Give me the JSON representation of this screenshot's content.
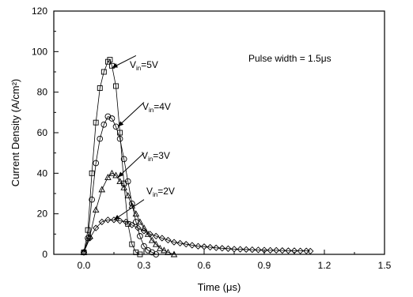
{
  "chart_data": {
    "type": "scatter",
    "xlabel": "Time (μs)",
    "ylabel": "Current Density (A/cm²)",
    "xlim": [
      -0.15,
      1.5
    ],
    "ylim": [
      0,
      120
    ],
    "xticks": [
      "0.0",
      "0.3",
      "0.6",
      "0.9",
      "1.2",
      "1.5"
    ],
    "yticks": [
      "0",
      "20",
      "40",
      "60",
      "80",
      "100",
      "120"
    ],
    "grid": false,
    "annotations": {
      "pulse_width": "Pulse width  = 1.5μs",
      "series_labels": [
        {
          "prefix": "V",
          "sub": "in",
          "suffix": "=5V"
        },
        {
          "prefix": "V",
          "sub": "in",
          "suffix": "=4V"
        },
        {
          "prefix": "V",
          "sub": "in",
          "suffix": "=3V"
        },
        {
          "prefix": "V",
          "sub": "in",
          "suffix": "=2V"
        }
      ]
    },
    "series": [
      {
        "marker": "square",
        "x": [
          0.0,
          0.02,
          0.04,
          0.06,
          0.08,
          0.1,
          0.12,
          0.13,
          0.14,
          0.16,
          0.18,
          0.2,
          0.22,
          0.24,
          0.26,
          0.28
        ],
        "y": [
          1,
          12,
          40,
          65,
          82,
          90,
          95,
          96,
          93,
          83,
          60,
          35,
          15,
          5,
          1,
          0
        ]
      },
      {
        "marker": "circle",
        "x": [
          0.0,
          0.02,
          0.04,
          0.06,
          0.08,
          0.1,
          0.12,
          0.14,
          0.16,
          0.18,
          0.2,
          0.22,
          0.24,
          0.26,
          0.28,
          0.3,
          0.32,
          0.34,
          0.36
        ],
        "y": [
          1,
          8,
          27,
          45,
          57,
          64,
          68,
          67,
          63,
          57,
          47,
          36,
          25,
          16,
          9,
          4,
          2,
          1,
          0
        ]
      },
      {
        "marker": "triangle",
        "x": [
          0.0,
          0.03,
          0.06,
          0.09,
          0.12,
          0.14,
          0.16,
          0.18,
          0.2,
          0.22,
          0.24,
          0.26,
          0.28,
          0.3,
          0.32,
          0.34,
          0.36,
          0.38,
          0.4,
          0.42,
          0.45
        ],
        "y": [
          1,
          9,
          22,
          32,
          38,
          40,
          39,
          36,
          33,
          29,
          24,
          20,
          16,
          13,
          10,
          7,
          5,
          3,
          2,
          1,
          0
        ]
      },
      {
        "marker": "diamond",
        "x": [
          0.0,
          0.03,
          0.06,
          0.09,
          0.12,
          0.15,
          0.18,
          0.21,
          0.24,
          0.27,
          0.3,
          0.33,
          0.36,
          0.39,
          0.42,
          0.45,
          0.48,
          0.51,
          0.54,
          0.57,
          0.6,
          0.63,
          0.66,
          0.69,
          0.72,
          0.75,
          0.78,
          0.81,
          0.84,
          0.87,
          0.9,
          0.93,
          0.96,
          0.99,
          1.02,
          1.05,
          1.08,
          1.11,
          1.13
        ],
        "y": [
          1,
          8,
          13,
          16,
          17,
          17,
          16.5,
          16,
          14.5,
          13,
          11.5,
          10,
          9,
          8,
          7,
          6,
          5.5,
          5,
          4.5,
          4,
          3.8,
          3.5,
          3.2,
          3,
          2.8,
          2.6,
          2.5,
          2.4,
          2.3,
          2.2,
          2.1,
          2,
          2,
          1.9,
          1.8,
          1.8,
          1.7,
          1.7,
          1.6
        ]
      }
    ]
  }
}
